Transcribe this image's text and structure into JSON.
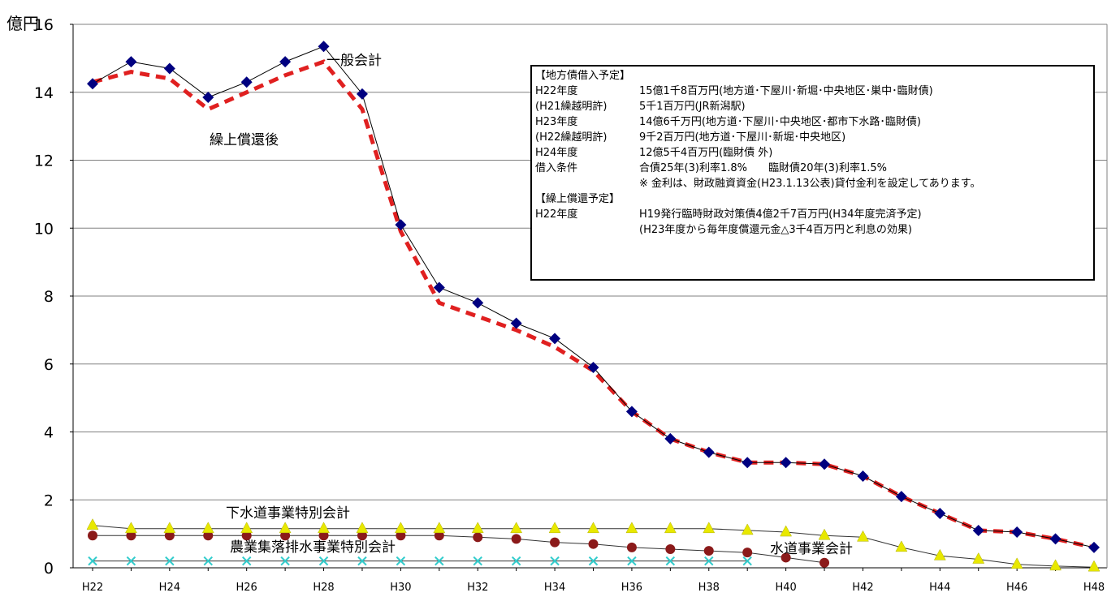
{
  "chart_data": {
    "type": "line",
    "ylabel": "億円",
    "ylim": [
      0,
      16
    ],
    "yticks": [
      0,
      2,
      4,
      6,
      8,
      10,
      12,
      14,
      16
    ],
    "x": [
      "H22",
      "H23",
      "H24",
      "H25",
      "H26",
      "H27",
      "H28",
      "H29",
      "H30",
      "H31",
      "H32",
      "H33",
      "H34",
      "H35",
      "H36",
      "H37",
      "H38",
      "H39",
      "H40",
      "H41",
      "H42",
      "H43",
      "H44",
      "H45",
      "H46",
      "H47",
      "H48"
    ],
    "xticklabels": [
      "H22",
      "H24",
      "H26",
      "H28",
      "H30",
      "H32",
      "H34",
      "H36",
      "H38",
      "H40",
      "H42",
      "H44",
      "H46",
      "H48"
    ],
    "grid": true,
    "series": [
      {
        "name": "一般会計",
        "color": "#000080",
        "marker": "diamond",
        "values": [
          14.25,
          14.9,
          14.7,
          13.85,
          14.3,
          14.9,
          15.35,
          13.95,
          10.1,
          8.25,
          7.8,
          7.2,
          6.75,
          5.9,
          4.6,
          3.8,
          3.4,
          3.1,
          3.1,
          3.05,
          2.7,
          2.1,
          1.6,
          1.1,
          1.05,
          0.85,
          0.6
        ]
      },
      {
        "name": "繰上償還後",
        "color": "#e02020",
        "style": "dashed",
        "values": [
          14.3,
          14.6,
          14.4,
          13.5,
          14.0,
          14.5,
          14.9,
          13.5,
          9.9,
          7.8,
          7.4,
          7.0,
          6.5,
          5.8,
          4.6,
          3.8,
          3.4,
          3.1,
          3.1,
          3.05,
          2.7,
          2.1,
          1.6,
          1.1,
          1.05,
          0.85,
          0.6
        ]
      },
      {
        "name": "下水道事業特別会計",
        "color": "#e8e800",
        "marker": "triangle",
        "values": [
          1.25,
          1.15,
          1.15,
          1.15,
          1.15,
          1.15,
          1.15,
          1.15,
          1.15,
          1.15,
          1.15,
          1.15,
          1.15,
          1.15,
          1.15,
          1.15,
          1.15,
          1.1,
          1.05,
          0.95,
          0.9,
          0.6,
          0.35,
          0.25,
          0.1,
          0.05,
          0.02
        ]
      },
      {
        "name": "水道事業会計",
        "color": "#8b1a1a",
        "marker": "circle",
        "values": [
          0.95,
          0.95,
          0.95,
          0.95,
          0.95,
          0.95,
          0.95,
          0.95,
          0.95,
          0.95,
          0.9,
          0.85,
          0.75,
          0.7,
          0.6,
          0.55,
          0.5,
          0.45,
          0.3,
          0.15,
          null,
          null,
          null,
          null,
          null,
          null,
          null
        ]
      },
      {
        "name": "農業集落排水事業特別会計",
        "color": "#33cccc",
        "marker": "x",
        "values": [
          0.2,
          0.2,
          0.2,
          0.2,
          0.2,
          0.2,
          0.2,
          0.2,
          0.2,
          0.2,
          0.2,
          0.2,
          0.2,
          0.2,
          0.2,
          0.2,
          0.2,
          0.2,
          null,
          null,
          null,
          null,
          null,
          null,
          null,
          null,
          null
        ]
      }
    ],
    "annotations": {
      "general": "一般会計",
      "after_repayment": "繰上償還後",
      "sewer": "下水道事業特別会計",
      "rural": "農業集落排水事業特別会計",
      "water": "水道事業会計"
    }
  },
  "notes": {
    "heading1": "【地方債借入予定】",
    "rows1": [
      {
        "label": "H22年度",
        "text": "15億1千8百万円(地方道･下屋川･新堀･中央地区･巣中･臨財債)"
      },
      {
        "label": "(H21繰越明許)",
        "text": "5千1百万円(JR新潟駅)"
      },
      {
        "label": "H23年度",
        "text": "14億6千万円(地方道･下屋川･中央地区･都市下水路･臨財債)"
      },
      {
        "label": "(H22繰越明許)",
        "text": "9千2百万円(地方道･下屋川･新堀･中央地区)"
      },
      {
        "label": "H24年度",
        "text": "12億5千4百万円(臨財債 外)"
      },
      {
        "label": "借入条件",
        "text": "合債25年(3)利率1.8%　　臨財債20年(3)利率1.5%"
      }
    ],
    "remark": "※ 金利は、財政融資資金(H23.1.13公表)貸付金利を設定してあります。",
    "heading2": "【繰上償還予定】",
    "rows2": [
      {
        "label": "H22年度",
        "text": "H19発行臨時財政対策債4億2千7百万円(H34年度完済予定)"
      },
      {
        "label": "",
        "text": "(H23年度から毎年度償還元金△3千4百万円と利息の効果)"
      }
    ]
  }
}
